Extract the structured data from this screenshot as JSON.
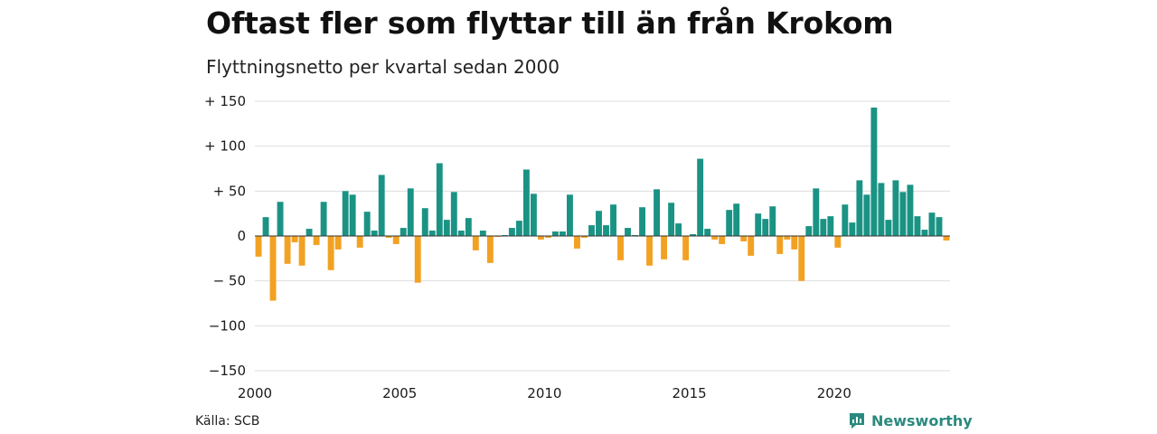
{
  "title": "Oftast fler som flyttar till än från Krokom",
  "subtitle": "Flyttningsnetto per kvartal sedan 2000",
  "source": "Källa: SCB",
  "brand": "Newsworthy",
  "colors": {
    "positive": "#1a9384",
    "negative": "#f2a122",
    "grid": "#dddddd",
    "zero": "#333333",
    "brand": "#2a8a7e"
  },
  "chart_data": {
    "type": "bar",
    "title": "Oftast fler som flyttar till än från Krokom",
    "subtitle": "Flyttningsnetto per kvartal sedan 2000",
    "ylim": [
      -150,
      150
    ],
    "yticks": [
      {
        "value": 150,
        "label": "+ 150"
      },
      {
        "value": 100,
        "label": "+ 100"
      },
      {
        "value": 50,
        "label": "+  50"
      },
      {
        "value": 0,
        "label": "0"
      },
      {
        "value": -50,
        "label": "− 50"
      },
      {
        "value": -100,
        "label": "−100"
      },
      {
        "value": -150,
        "label": "−150"
      }
    ],
    "xticks": [
      "2000",
      "2005",
      "2010",
      "2015",
      "2020"
    ],
    "start_year": 2000,
    "grid": true,
    "series": [
      {
        "values": [
          -23,
          21,
          -72,
          38,
          -31,
          -7,
          -33,
          8,
          -10,
          38,
          -38,
          -15,
          50,
          46,
          -13,
          27,
          6,
          68,
          -2,
          -9,
          9,
          53,
          -52,
          31,
          6,
          81,
          18,
          49,
          6,
          20,
          -16,
          6,
          -30,
          -1,
          1,
          9,
          17,
          74,
          47,
          -4,
          -2,
          5,
          5,
          46,
          -14,
          -2,
          12,
          28,
          12,
          35,
          -27,
          9,
          1,
          32,
          -33,
          52,
          -26,
          37,
          14,
          -27,
          2,
          86,
          8,
          -4,
          -9,
          29,
          36,
          -6,
          -22,
          25,
          19,
          33,
          -20,
          -4,
          -15,
          -50,
          11,
          53,
          19,
          22,
          -13,
          35,
          15,
          62,
          46,
          143,
          59,
          18,
          62,
          49,
          57,
          22,
          7,
          26,
          21,
          -5
        ]
      }
    ]
  }
}
